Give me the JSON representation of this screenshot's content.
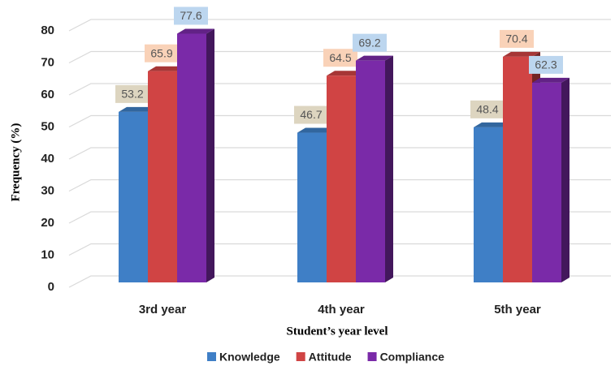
{
  "chart_data": {
    "type": "bar3d",
    "categories": [
      "3rd year",
      "4th year",
      "5th year"
    ],
    "series": [
      {
        "name": "Knowledge",
        "color": "#3f7fc6",
        "label_bg": "#ddd5c0",
        "values": [
          53.2,
          46.7,
          48.4
        ]
      },
      {
        "name": "Attitude",
        "color": "#d04444",
        "label_bg": "#f9d2b8",
        "values": [
          65.9,
          64.5,
          70.4
        ]
      },
      {
        "name": "Compliance",
        "color": "#7a2aa8",
        "label_bg": "#bcd6ef",
        "values": [
          77.6,
          69.2,
          62.3
        ]
      }
    ],
    "ylabel": "Frequency (%)",
    "xlabel": "Student’s year level",
    "ylim": [
      0,
      80
    ],
    "yticks": [
      0,
      10,
      20,
      30,
      40,
      50,
      60,
      70,
      80
    ],
    "grid": true,
    "legend": "bottom"
  }
}
